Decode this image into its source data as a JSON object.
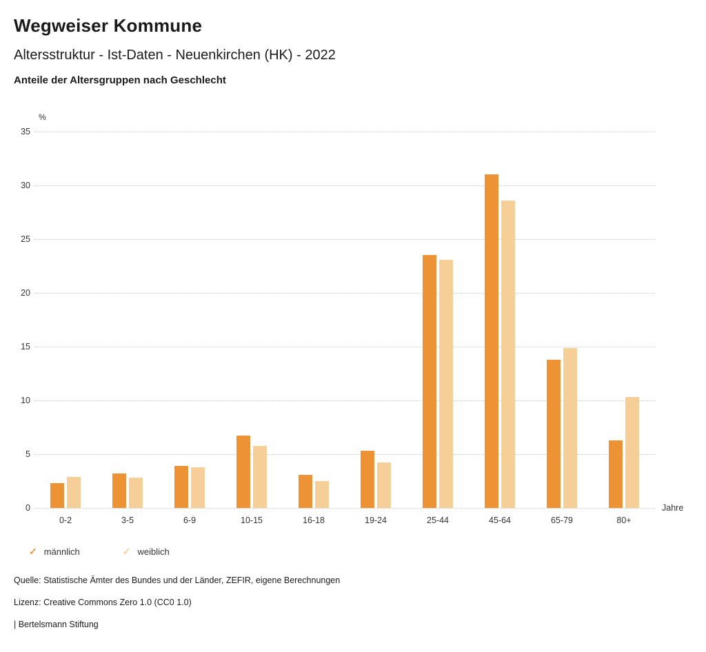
{
  "header": {
    "title": "Wegweiser Kommune",
    "subtitle": "Altersstruktur - Ist-Daten - Neuenkirchen (HK) - 2022",
    "chart_title": "Anteile der Altersgruppen nach Geschlecht"
  },
  "chart_data": {
    "type": "bar",
    "categories": [
      "0-2",
      "3-5",
      "6-9",
      "10-15",
      "16-18",
      "19-24",
      "25-44",
      "45-64",
      "65-79",
      "80+"
    ],
    "series": [
      {
        "name": "männlich",
        "color": "#ED9336",
        "values": [
          2.3,
          3.2,
          3.9,
          6.7,
          3.1,
          5.3,
          23.5,
          31.0,
          13.8,
          6.3
        ]
      },
      {
        "name": "weiblich",
        "color": "#F6CE97",
        "values": [
          2.9,
          2.8,
          3.8,
          5.8,
          2.5,
          4.2,
          23.1,
          28.6,
          14.9,
          10.3
        ]
      }
    ],
    "title": "Anteile der Altersgruppen nach Geschlecht",
    "xlabel": "Jahre",
    "ylabel": "%",
    "yticks": [
      0,
      5,
      10,
      15,
      20,
      25,
      30,
      35
    ],
    "ylim": [
      0,
      35
    ],
    "grid": "horizontal-dotted",
    "legend_position": "bottom-left",
    "legend_marker": "check-icon"
  },
  "footer": {
    "source": "Quelle: Statistische Ämter des Bundes und der Länder, ZEFIR, eigene Berechnungen",
    "license": "Lizenz: Creative Commons Zero 1.0 (CC0 1.0)",
    "attribution": "| Bertelsmann Stiftung"
  }
}
